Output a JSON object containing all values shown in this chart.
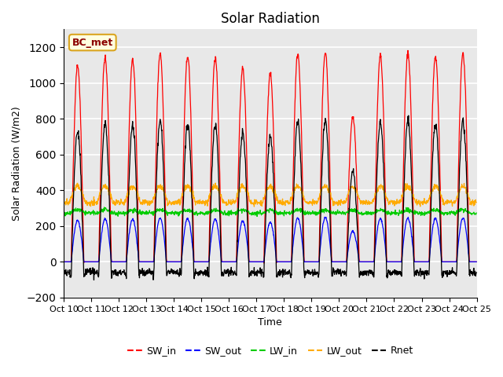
{
  "title": "Solar Radiation",
  "ylabel": "Solar Radiation (W/m2)",
  "xlabel": "Time",
  "ylim": [
    -200,
    1300
  ],
  "yticks": [
    -200,
    0,
    200,
    400,
    600,
    800,
    1000,
    1200
  ],
  "x_tick_labels": [
    "Oct 10",
    "Oct 11",
    "Oct 12",
    "Oct 13",
    "Oct 14",
    "Oct 15",
    "Oct 16",
    "Oct 17",
    "Oct 18",
    "Oct 19",
    "Oct 20",
    "Oct 21",
    "Oct 22",
    "Oct 23",
    "Oct 24",
    "Oct 25"
  ],
  "x_tick_positions": [
    0,
    1,
    2,
    3,
    4,
    5,
    6,
    7,
    8,
    9,
    10,
    11,
    12,
    13,
    14,
    15
  ],
  "station_label": "BC_met",
  "colors": {
    "SW_in": "#ff0000",
    "SW_out": "#0000ff",
    "LW_in": "#00cc00",
    "LW_out": "#ffaa00",
    "Rnet": "#000000"
  },
  "bg_color": "#e8e8e8",
  "n_days": 15,
  "points_per_day": 96,
  "SW_in_peaks": [
    1100,
    1140,
    1130,
    1165,
    1150,
    1140,
    1080,
    1050,
    1165,
    1175,
    810,
    1150,
    1165,
    1150,
    1165
  ],
  "LW_in_base": 272,
  "LW_out_base": 332,
  "night_rnet": -85
}
